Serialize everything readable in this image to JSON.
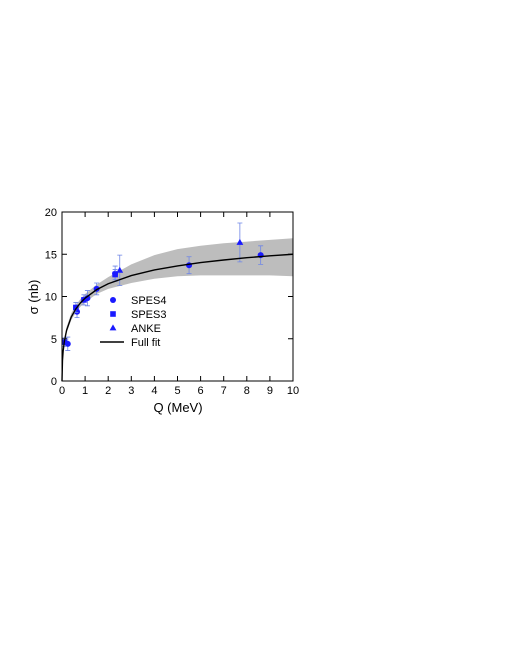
{
  "chart_data": {
    "type": "scatter",
    "xlabel": "Q (MeV)",
    "ylabel": "σ (nb)",
    "xlim": [
      0,
      10
    ],
    "ylim": [
      0,
      20
    ],
    "xticks": [
      0,
      1,
      2,
      3,
      4,
      5,
      6,
      7,
      8,
      9,
      10
    ],
    "yticks": [
      0,
      5,
      10,
      15,
      20
    ],
    "band": {
      "color": "#bdbdbd",
      "x": [
        0,
        0.02,
        0.05,
        0.1,
        0.2,
        0.4,
        0.6,
        0.8,
        1,
        1.5,
        2,
        3,
        4,
        5,
        6,
        7,
        8,
        9,
        10
      ],
      "upper": [
        0,
        2.6,
        3.8,
        5.0,
        6.4,
        8.0,
        9.0,
        9.7,
        10.3,
        11.4,
        12.3,
        13.8,
        14.9,
        15.6,
        16.0,
        16.3,
        16.5,
        16.7,
        16.9
      ],
      "lower": [
        0,
        2.2,
        3.3,
        4.4,
        5.7,
        7.2,
        8.1,
        8.8,
        9.3,
        10.3,
        10.9,
        11.6,
        12.1,
        12.4,
        12.5,
        12.5,
        12.5,
        12.5,
        12.4
      ]
    },
    "series": [
      {
        "name": "SPES4",
        "color": "#1a1aff",
        "errcolor": "#6f86e6",
        "marker": "circle",
        "x": [
          0.25,
          0.65,
          1.1,
          1.5,
          2.3,
          5.5,
          8.6
        ],
        "values": [
          4.4,
          8.2,
          9.8,
          10.9,
          12.7,
          13.7,
          14.9
        ],
        "errors": [
          0.8,
          0.7,
          0.9,
          0.7,
          0.9,
          1.0,
          1.1
        ]
      },
      {
        "name": "SPES3",
        "color": "#1a1aff",
        "errcolor": "#6f86e6",
        "marker": "square",
        "x": [
          0.1,
          0.6,
          0.95,
          2.3
        ],
        "values": [
          4.6,
          8.7,
          9.6,
          12.6
        ],
        "errors": [
          0.5,
          0.6,
          0.6,
          0.6
        ]
      },
      {
        "name": "ANKE",
        "color": "#1a1aff",
        "errcolor": "#6f86e6",
        "marker": "triangle",
        "x": [
          2.5,
          7.7
        ],
        "values": [
          13.1,
          16.4
        ],
        "errors": [
          1.8,
          2.3
        ]
      },
      {
        "name": "Full fit",
        "color": "#000000",
        "marker": "line",
        "x": [
          0,
          0.02,
          0.05,
          0.1,
          0.2,
          0.4,
          0.6,
          0.8,
          1,
          1.5,
          2,
          3,
          4,
          5,
          6,
          7,
          8,
          9,
          10
        ],
        "values": [
          0,
          2.4,
          3.55,
          4.67,
          6.02,
          7.57,
          8.54,
          9.25,
          9.8,
          10.81,
          11.51,
          12.48,
          13.14,
          13.62,
          14.01,
          14.32,
          14.59,
          14.81,
          15.0
        ]
      }
    ]
  }
}
